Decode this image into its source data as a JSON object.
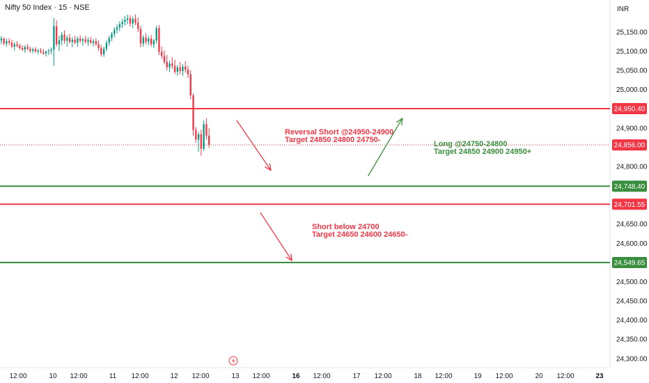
{
  "header": {
    "symbol_title": "Nifty 50 Index · 15 · NSE",
    "currency": "INR"
  },
  "chart_data": {
    "type": "candlestick",
    "y_axis": {
      "ticks": [
        25150,
        25100,
        25050,
        25000,
        24900,
        24800,
        24650,
        24600,
        24500,
        24450,
        24400,
        24350,
        24300
      ],
      "tick_labels": [
        "25,150.00",
        "25,100.00",
        "25,050.00",
        "25,000.00",
        "24,900.00",
        "24,800.00",
        "24,650.00",
        "24,600.00",
        "24,500.00",
        "24,450.00",
        "24,400.00",
        "24,350.00",
        "24,300.00"
      ],
      "range": [
        24287,
        25197
      ]
    },
    "x_axis": {
      "ticks": [
        {
          "label": "12:00",
          "major": false
        },
        {
          "label": "10",
          "major": false
        },
        {
          "label": "12:00",
          "major": false
        },
        {
          "label": "11",
          "major": false
        },
        {
          "label": "12:00",
          "major": false
        },
        {
          "label": "12",
          "major": false
        },
        {
          "label": "12:00",
          "major": false
        },
        {
          "label": "13",
          "major": false
        },
        {
          "label": "12:00",
          "major": false
        },
        {
          "label": "16",
          "major": true
        },
        {
          "label": "12:00",
          "major": false
        },
        {
          "label": "17",
          "major": false
        },
        {
          "label": "12:00",
          "major": false
        },
        {
          "label": "18",
          "major": false
        },
        {
          "label": "12:00",
          "major": false
        },
        {
          "label": "19",
          "major": false
        },
        {
          "label": "12:00",
          "major": false
        },
        {
          "label": "20",
          "major": false
        },
        {
          "label": "12:00",
          "major": false
        },
        {
          "label": "23",
          "major": true
        }
      ],
      "bar_range": [
        0,
        232
      ]
    },
    "horizontal_lines": [
      {
        "price": 24950.4,
        "label": "24,950.40",
        "color": "#f23645"
      },
      {
        "price": 24748.4,
        "label": "24,748.40",
        "color": "#388e3c"
      },
      {
        "price": 24701.55,
        "label": "24,701.55",
        "color": "#f23645"
      },
      {
        "price": 24549.65,
        "label": "24,549.65",
        "color": "#388e3c"
      }
    ],
    "last_price": {
      "price": 24856.0,
      "label": "24,856.00",
      "color": "#f23645"
    },
    "annotations": [
      {
        "lines": [
          "Reversal Short @24950-24900",
          "Target 24850 24800 24750-"
        ],
        "color": "#f23645"
      },
      {
        "lines": [
          "Long @24750-24800",
          "Target 24850 24900 24950+"
        ],
        "color": "#388e3c"
      },
      {
        "lines": [
          "Short below 24700",
          "Target 24650 24600 24650-"
        ],
        "color": "#f23645"
      }
    ],
    "arrows": [
      {
        "from": {
          "bar": 90,
          "price": 24920
        },
        "to": {
          "bar": 103,
          "price": 24790
        },
        "color": "#f23645"
      },
      {
        "from": {
          "bar": 140,
          "price": 24775
        },
        "to": {
          "bar": 153,
          "price": 24925
        },
        "color": "#388e3c"
      },
      {
        "from": {
          "bar": 99,
          "price": 24680
        },
        "to": {
          "bar": 111,
          "price": 24555
        },
        "color": "#f23645"
      }
    ],
    "candles": [
      [
        25128,
        25140,
        25118,
        25133
      ],
      [
        25133,
        25136,
        25115,
        25120
      ],
      [
        25120,
        25132,
        25112,
        25126
      ],
      [
        25126,
        25134,
        25116,
        25122
      ],
      [
        25122,
        25130,
        25108,
        25112
      ],
      [
        25112,
        25124,
        25102,
        25118
      ],
      [
        25118,
        25126,
        25110,
        25114
      ],
      [
        25114,
        25120,
        25104,
        25108
      ],
      [
        25108,
        25116,
        25100,
        25104
      ],
      [
        25104,
        25116,
        25096,
        25111
      ],
      [
        25111,
        25119,
        25102,
        25106
      ],
      [
        25106,
        25112,
        25096,
        25101
      ],
      [
        25101,
        25109,
        25094,
        25105
      ],
      [
        25105,
        25111,
        25096,
        25099
      ],
      [
        25099,
        25106,
        25092,
        25102
      ],
      [
        25102,
        25108,
        25094,
        25098
      ],
      [
        25098,
        25106,
        25090,
        25094
      ],
      [
        25094,
        25102,
        25086,
        25099
      ],
      [
        25099,
        25106,
        25090,
        25101
      ],
      [
        25101,
        25110,
        25092,
        25104
      ],
      [
        25104,
        25186,
        25062,
        25165
      ],
      [
        25165,
        25180,
        25112,
        25118
      ],
      [
        25118,
        25140,
        25100,
        25128
      ],
      [
        25128,
        25150,
        25115,
        25143
      ],
      [
        25143,
        25154,
        25120,
        25127
      ],
      [
        25127,
        25141,
        25112,
        25135
      ],
      [
        25135,
        25145,
        25120,
        25124
      ],
      [
        25124,
        25136,
        25110,
        25130
      ],
      [
        25130,
        25140,
        25118,
        25122
      ],
      [
        25122,
        25138,
        25112,
        25133
      ],
      [
        25133,
        25142,
        25122,
        25127
      ],
      [
        25127,
        25135,
        25114,
        25131
      ],
      [
        25131,
        25140,
        25120,
        25124
      ],
      [
        25124,
        25136,
        25114,
        25129
      ],
      [
        25129,
        25138,
        25118,
        25122
      ],
      [
        25122,
        25132,
        25112,
        25126
      ],
      [
        25126,
        25134,
        25114,
        25118
      ],
      [
        25118,
        25128,
        25100,
        25108
      ],
      [
        25108,
        25116,
        25086,
        25092
      ],
      [
        25092,
        25112,
        25085,
        25106
      ],
      [
        25106,
        25128,
        25100,
        25122
      ],
      [
        25122,
        25140,
        25114,
        25134
      ],
      [
        25134,
        25150,
        25126,
        25145
      ],
      [
        25145,
        25162,
        25136,
        25156
      ],
      [
        25156,
        25170,
        25146,
        25162
      ],
      [
        25162,
        25178,
        25152,
        25170
      ],
      [
        25170,
        25184,
        25160,
        25176
      ],
      [
        25176,
        25192,
        25166,
        25182
      ],
      [
        25182,
        25195,
        25170,
        25186
      ],
      [
        25186,
        25194,
        25164,
        25172
      ],
      [
        25172,
        25190,
        25160,
        25184
      ],
      [
        25184,
        25196,
        25168,
        25174
      ],
      [
        25174,
        25188,
        25150,
        25158
      ],
      [
        25158,
        25166,
        25110,
        25120
      ],
      [
        25120,
        25142,
        25112,
        25136
      ],
      [
        25136,
        25146,
        25118,
        25124
      ],
      [
        25124,
        25140,
        25116,
        25133
      ],
      [
        25133,
        25142,
        25112,
        25118
      ],
      [
        25118,
        25132,
        25108,
        25128
      ],
      [
        25128,
        25166,
        25120,
        25160
      ],
      [
        25160,
        25168,
        25090,
        25098
      ],
      [
        25098,
        25112,
        25080,
        25088
      ],
      [
        25088,
        25102,
        25066,
        25072
      ],
      [
        25072,
        25090,
        25050,
        25058
      ],
      [
        25058,
        25076,
        25046,
        25068
      ],
      [
        25068,
        25084,
        25054,
        25062
      ],
      [
        25062,
        25078,
        25040,
        25046
      ],
      [
        25046,
        25064,
        25036,
        25058
      ],
      [
        25058,
        25072,
        25040,
        25048
      ],
      [
        25048,
        25066,
        25036,
        25060
      ],
      [
        25060,
        25074,
        25044,
        25052
      ],
      [
        25052,
        25062,
        25030,
        25040
      ],
      [
        25040,
        25050,
        24975,
        24985
      ],
      [
        24985,
        24990,
        24880,
        24895
      ],
      [
        24895,
        24902,
        24862,
        24870
      ],
      [
        24870,
        24890,
        24838,
        24884
      ],
      [
        24884,
        24896,
        24828,
        24846
      ],
      [
        24846,
        24920,
        24840,
        24910
      ],
      [
        24910,
        24925,
        24870,
        24880
      ],
      [
        24880,
        24900,
        24848,
        24856
      ]
    ]
  }
}
